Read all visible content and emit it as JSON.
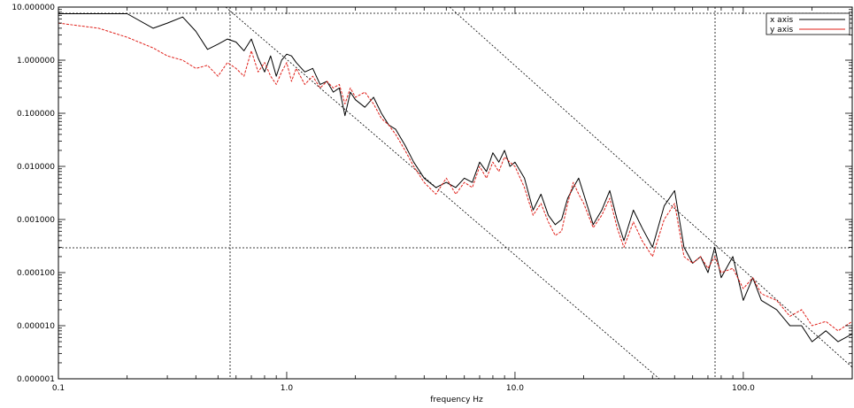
{
  "chart_data": {
    "type": "line",
    "title": "",
    "xlabel": "frequency Hz",
    "ylabel": "",
    "xscale": "log",
    "yscale": "log",
    "xlim": [
      0.1,
      300
    ],
    "ylim": [
      1e-06,
      10
    ],
    "grid": false,
    "legend_position": "top-right",
    "x_ticks": [
      0.1,
      1.0,
      10.0,
      100.0
    ],
    "x_tick_labels": [
      "0.1",
      "1.0",
      "10.0",
      "100.0"
    ],
    "y_ticks": [
      1e-06,
      1e-05,
      0.0001,
      0.001,
      0.01,
      0.1,
      1,
      10
    ],
    "y_tick_labels": [
      "0.000001",
      "0.000010",
      "0.000100",
      "0.001000",
      "0.010000",
      "0.100000",
      "1.000000",
      "10.000000"
    ],
    "series": [
      {
        "name": "x axis",
        "color": "#000000",
        "style": "solid",
        "x": [
          0.1,
          0.15,
          0.2,
          0.26,
          0.3,
          0.35,
          0.4,
          0.45,
          0.5,
          0.55,
          0.6,
          0.65,
          0.7,
          0.75,
          0.8,
          0.85,
          0.9,
          0.95,
          1.0,
          1.05,
          1.1,
          1.2,
          1.3,
          1.4,
          1.5,
          1.6,
          1.7,
          1.8,
          1.9,
          2.0,
          2.2,
          2.4,
          2.6,
          2.8,
          3.0,
          3.3,
          3.6,
          4.0,
          4.5,
          5.0,
          5.5,
          6.0,
          6.5,
          7.0,
          7.5,
          8.0,
          8.5,
          9.0,
          9.5,
          10,
          11,
          12,
          13,
          14,
          15,
          16,
          17,
          18,
          19,
          20,
          22,
          24,
          26,
          28,
          30,
          33,
          36,
          40,
          45,
          50,
          55,
          60,
          65,
          70,
          75,
          80,
          90,
          100,
          110,
          120,
          140,
          160,
          180,
          200,
          230,
          260,
          300
        ],
        "values": [
          7.5,
          7.5,
          7.5,
          4.0,
          5.0,
          6.5,
          3.5,
          1.6,
          2.0,
          2.5,
          2.2,
          1.5,
          2.5,
          1.1,
          0.6,
          1.2,
          0.5,
          1.0,
          1.3,
          1.2,
          0.9,
          0.6,
          0.7,
          0.35,
          0.4,
          0.25,
          0.3,
          0.09,
          0.25,
          0.18,
          0.13,
          0.2,
          0.1,
          0.06,
          0.05,
          0.025,
          0.012,
          0.006,
          0.004,
          0.005,
          0.004,
          0.006,
          0.005,
          0.012,
          0.008,
          0.018,
          0.012,
          0.02,
          0.01,
          0.012,
          0.006,
          0.0015,
          0.003,
          0.0012,
          0.0008,
          0.001,
          0.0025,
          0.004,
          0.006,
          0.003,
          0.0008,
          0.0015,
          0.0035,
          0.001,
          0.0004,
          0.0015,
          0.0007,
          0.0003,
          0.0018,
          0.0035,
          0.0003,
          0.00015,
          0.0002,
          0.0001,
          0.0003,
          8e-05,
          0.0002,
          3e-05,
          8e-05,
          3e-05,
          2e-05,
          1e-05,
          1e-05,
          5e-06,
          8e-06,
          5e-06,
          7e-06
        ]
      },
      {
        "name": "y axis",
        "color": "#e0201a",
        "style": "dashed",
        "x": [
          0.1,
          0.15,
          0.2,
          0.26,
          0.3,
          0.35,
          0.4,
          0.45,
          0.5,
          0.55,
          0.6,
          0.65,
          0.7,
          0.75,
          0.8,
          0.85,
          0.9,
          0.95,
          1.0,
          1.05,
          1.1,
          1.2,
          1.3,
          1.4,
          1.5,
          1.6,
          1.7,
          1.8,
          1.9,
          2.0,
          2.2,
          2.4,
          2.6,
          2.8,
          3.0,
          3.3,
          3.6,
          4.0,
          4.5,
          5.0,
          5.5,
          6.0,
          6.5,
          7.0,
          7.5,
          8.0,
          8.5,
          9.0,
          9.5,
          10,
          11,
          12,
          13,
          14,
          15,
          16,
          17,
          18,
          19,
          20,
          22,
          24,
          26,
          28,
          30,
          33,
          36,
          40,
          45,
          50,
          55,
          60,
          65,
          70,
          75,
          80,
          90,
          100,
          110,
          120,
          140,
          160,
          180,
          200,
          230,
          260,
          300
        ],
        "values": [
          5.0,
          4.0,
          2.7,
          1.7,
          1.2,
          1.0,
          0.7,
          0.8,
          0.5,
          0.9,
          0.7,
          0.5,
          1.5,
          0.6,
          0.9,
          0.5,
          0.35,
          0.6,
          0.9,
          0.4,
          0.7,
          0.35,
          0.5,
          0.3,
          0.4,
          0.3,
          0.35,
          0.15,
          0.3,
          0.2,
          0.25,
          0.15,
          0.08,
          0.06,
          0.04,
          0.02,
          0.01,
          0.005,
          0.003,
          0.006,
          0.003,
          0.005,
          0.004,
          0.01,
          0.006,
          0.012,
          0.008,
          0.015,
          0.012,
          0.01,
          0.004,
          0.0012,
          0.002,
          0.0009,
          0.0005,
          0.0006,
          0.002,
          0.005,
          0.003,
          0.002,
          0.0007,
          0.0012,
          0.0025,
          0.0007,
          0.0003,
          0.0009,
          0.0004,
          0.0002,
          0.001,
          0.002,
          0.0002,
          0.00015,
          0.0002,
          0.00012,
          0.0002,
          0.0001,
          0.00012,
          5e-05,
          8e-05,
          4e-05,
          3e-05,
          1.5e-05,
          2e-05,
          1e-05,
          1.2e-05,
          8e-06,
          1.2e-05
        ]
      }
    ]
  }
}
